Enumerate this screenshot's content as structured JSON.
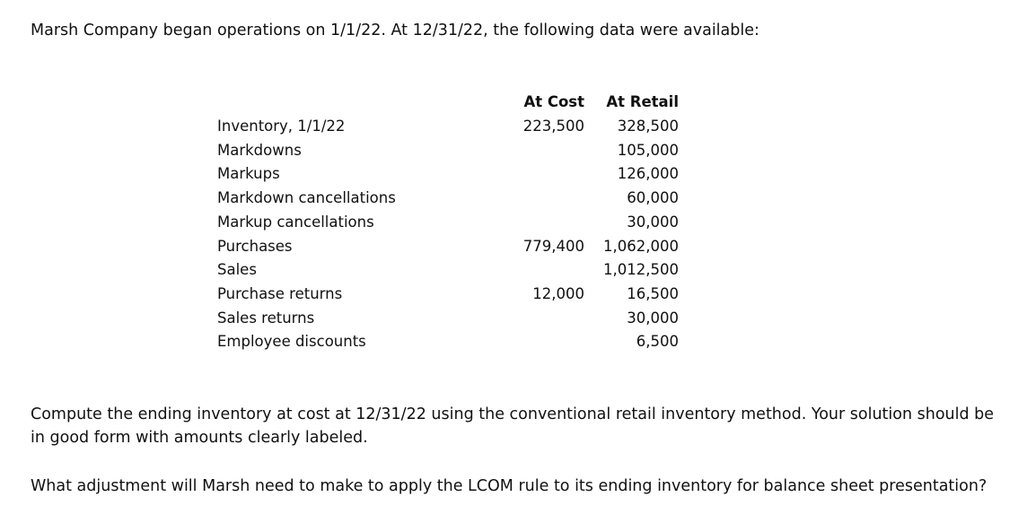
{
  "intro": "Marsh Company began operations on 1/1/22.  At 12/31/22, the following data were available:",
  "table": {
    "headers": {
      "cost": "At Cost",
      "retail": "At Retail"
    },
    "rows": [
      {
        "label": "Inventory, 1/1/22",
        "cost": "223,500",
        "retail": "328,500"
      },
      {
        "label": "Markdowns",
        "cost": "",
        "retail": "105,000"
      },
      {
        "label": "Markups",
        "cost": "",
        "retail": "126,000"
      },
      {
        "label": "Markdown cancellations",
        "cost": "",
        "retail": "60,000"
      },
      {
        "label": "Markup cancellations",
        "cost": "",
        "retail": "30,000"
      },
      {
        "label": "Purchases",
        "cost": "779,400",
        "retail": "1,062,000"
      },
      {
        "label": "Sales",
        "cost": "",
        "retail": "1,012,500"
      },
      {
        "label": "Purchase returns",
        "cost": "12,000",
        "retail": "16,500"
      },
      {
        "label": "Sales returns",
        "cost": "",
        "retail": "30,000"
      },
      {
        "label": "Employee discounts",
        "cost": "",
        "retail": "6,500"
      }
    ]
  },
  "questions": [
    "Compute the ending inventory at cost at 12/31/22 using the conventional retail inventory method.  Your solution should be in good form with amounts clearly labeled.",
    "What adjustment will Marsh need to make to apply the LCOM rule to its ending inventory for balance sheet presentation?"
  ]
}
